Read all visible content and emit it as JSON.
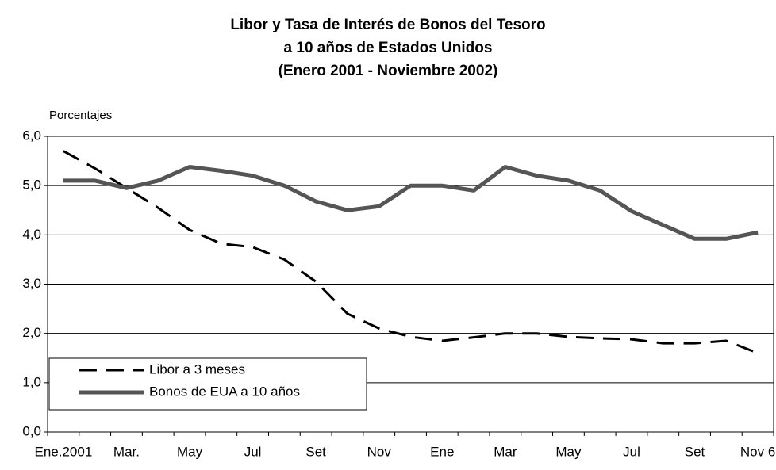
{
  "chart_data": {
    "type": "line",
    "title": [
      "Libor y Tasa de Interés de Bonos del Tesoro",
      "a 10 años de Estados Unidos",
      "(Enero 2001 - Noviembre 2002)"
    ],
    "y_label": "Porcentajes",
    "categories": [
      "Ene.2001",
      null,
      "Mar.",
      null,
      "May",
      null,
      "Jul",
      null,
      "Set",
      null,
      "Nov",
      null,
      "Ene",
      null,
      "Mar",
      null,
      "May",
      null,
      "Jul",
      null,
      "Set",
      null,
      "Nov 6"
    ],
    "series": [
      {
        "name": "Libor a 3 meses",
        "color": "#000000",
        "dash": true,
        "values": [
          5.7,
          5.35,
          4.95,
          4.55,
          4.1,
          3.82,
          3.75,
          3.5,
          3.05,
          2.4,
          2.1,
          1.93,
          1.85,
          1.92,
          2.0,
          2.0,
          1.93,
          1.9,
          1.88,
          1.8,
          1.8,
          1.85,
          1.6
        ]
      },
      {
        "name": "Bonos de EUA a 10 años",
        "color": "#555555",
        "dash": false,
        "values": [
          5.1,
          5.1,
          4.95,
          5.1,
          5.38,
          5.3,
          5.2,
          5.0,
          4.68,
          4.5,
          4.58,
          5.0,
          5.0,
          4.9,
          5.38,
          5.2,
          5.1,
          4.9,
          4.48,
          4.2,
          3.92,
          3.92,
          4.05
        ]
      }
    ],
    "ylim": [
      0,
      6
    ],
    "yticks": [
      {
        "value": 0,
        "label": "0,0"
      },
      {
        "value": 1,
        "label": "1,0"
      },
      {
        "value": 2,
        "label": "2,0"
      },
      {
        "value": 3,
        "label": "3,0"
      },
      {
        "value": 4,
        "label": "4,0"
      },
      {
        "value": 5,
        "label": "5,0"
      },
      {
        "value": 6,
        "label": "6,0"
      }
    ],
    "grid": true,
    "legend": "lower left"
  }
}
